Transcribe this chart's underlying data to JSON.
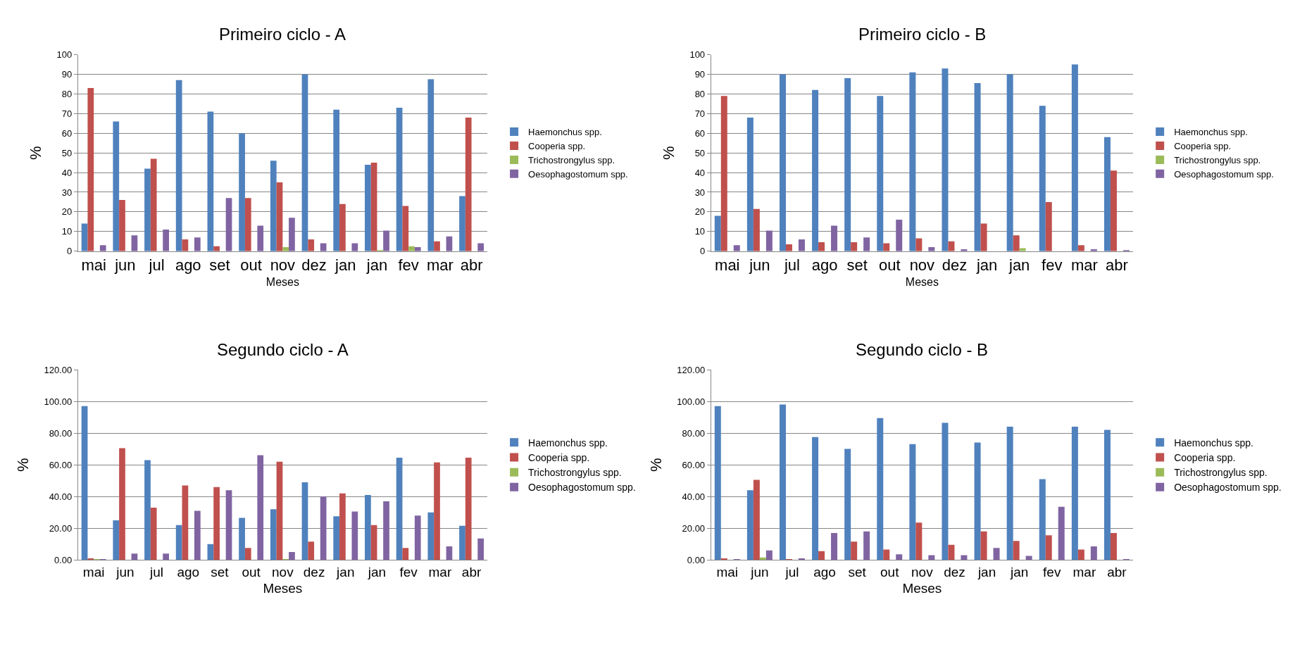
{
  "chart_data": [
    {
      "type": "bar",
      "title": "Primeiro ciclo - A",
      "xlabel": "Meses",
      "ylabel": "%",
      "categories": [
        "mai",
        "jun",
        "jul",
        "ago",
        "set",
        "out",
        "nov",
        "dez",
        "jan",
        "jan",
        "fev",
        "mar",
        "abr"
      ],
      "ylim": [
        0,
        100
      ],
      "yticks": [
        0,
        10,
        20,
        30,
        40,
        50,
        60,
        70,
        80,
        90,
        100
      ],
      "grid": "y",
      "legend": "right",
      "series": [
        {
          "name": "Haemonchus spp.",
          "color": "#4f81bd",
          "values": [
            14,
            66,
            42,
            87,
            71,
            60,
            46,
            90,
            72,
            44,
            73,
            87.5,
            28
          ]
        },
        {
          "name": "Cooperia spp.",
          "color": "#c0504d",
          "values": [
            83,
            26,
            47,
            6,
            2.5,
            27,
            35,
            6,
            24,
            45,
            23,
            5,
            68
          ]
        },
        {
          "name": "Trichostrongylus spp.",
          "color": "#9bbb59",
          "values": [
            0,
            0,
            0,
            0,
            0,
            0,
            2,
            0,
            0,
            0.5,
            2.5,
            0,
            0
          ]
        },
        {
          "name": "Oesophagostomum spp.",
          "color": "#8064a2",
          "values": [
            3,
            8,
            11,
            7,
            27,
            13,
            17,
            4,
            4,
            10.5,
            2,
            7.5,
            4
          ]
        }
      ]
    },
    {
      "type": "bar",
      "title": "Primeiro ciclo - B",
      "xlabel": "Meses",
      "ylabel": "%",
      "categories": [
        "mai",
        "jun",
        "jul",
        "ago",
        "set",
        "out",
        "nov",
        "dez",
        "jan",
        "jan",
        "fev",
        "mar",
        "abr"
      ],
      "ylim": [
        0,
        100
      ],
      "yticks": [
        0,
        10,
        20,
        30,
        40,
        50,
        60,
        70,
        80,
        90,
        100
      ],
      "grid": "y",
      "legend": "right",
      "series": [
        {
          "name": "Haemonchus spp.",
          "color": "#4f81bd",
          "values": [
            18,
            68,
            90,
            82,
            88,
            79,
            91,
            93,
            85.5,
            90,
            74,
            95,
            58
          ]
        },
        {
          "name": "Cooperia spp.",
          "color": "#c0504d",
          "values": [
            79,
            21.5,
            3.5,
            4.5,
            4.5,
            4,
            6.5,
            5,
            14,
            8,
            25,
            3,
            41
          ]
        },
        {
          "name": "Trichostrongylus spp.",
          "color": "#9bbb59",
          "values": [
            0,
            0,
            0,
            0,
            0,
            0,
            0,
            0,
            0,
            1.5,
            0,
            0,
            0
          ]
        },
        {
          "name": "Oesophagostomum spp.",
          "color": "#8064a2",
          "values": [
            3,
            10.5,
            6,
            13,
            7,
            16,
            2,
            1,
            0,
            0,
            0,
            1,
            0.5
          ]
        }
      ]
    },
    {
      "type": "bar",
      "title": "Segundo ciclo - A",
      "xlabel": "Meses",
      "ylabel": "%",
      "categories": [
        "mai",
        "jun",
        "jul",
        "ago",
        "set",
        "out",
        "nov",
        "dez",
        "jan",
        "jan",
        "fev",
        "mar",
        "abr"
      ],
      "ylim": [
        0,
        120
      ],
      "yticks": [
        {
          "value": 0,
          "label": "0.00"
        },
        {
          "value": 20,
          "label": "20.00"
        },
        {
          "value": 40,
          "label": "40.00"
        },
        {
          "value": 60,
          "label": "60.00"
        },
        {
          "value": 80,
          "label": "80.00"
        },
        {
          "value": 100,
          "label": "100.00"
        },
        {
          "value": 120,
          "label": "120.00"
        }
      ],
      "grid": "y",
      "legend": "right",
      "series": [
        {
          "name": "Haemonchus spp.",
          "color": "#4f81bd",
          "values": [
            97,
            25,
            63,
            22,
            10,
            26.5,
            32,
            49,
            27.5,
            41,
            64.5,
            30,
            21.5
          ]
        },
        {
          "name": "Cooperia spp.",
          "color": "#c0504d",
          "values": [
            1,
            70.5,
            33,
            47,
            46,
            7.5,
            62,
            11.5,
            42,
            22,
            7.5,
            61.5,
            64.5
          ]
        },
        {
          "name": "Trichostrongylus spp.",
          "color": "#9bbb59",
          "values": [
            0.5,
            0,
            0,
            0,
            0,
            0,
            0.5,
            0,
            0,
            0,
            0,
            0,
            0
          ]
        },
        {
          "name": "Oesophagostomum spp.",
          "color": "#8064a2",
          "values": [
            0.5,
            4,
            4,
            31,
            44,
            66,
            5,
            40,
            30.5,
            37,
            28,
            8.5,
            13.5
          ]
        }
      ]
    },
    {
      "type": "bar",
      "title": "Segundo ciclo - B",
      "xlabel": "Meses",
      "ylabel": "%",
      "categories": [
        "mai",
        "jun",
        "jul",
        "ago",
        "set",
        "out",
        "nov",
        "dez",
        "jan",
        "jan",
        "fev",
        "mar",
        "abr"
      ],
      "ylim": [
        0,
        120
      ],
      "yticks": [
        {
          "value": 0,
          "label": "0.00"
        },
        {
          "value": 20,
          "label": "20.00"
        },
        {
          "value": 40,
          "label": "40.00"
        },
        {
          "value": 60,
          "label": "60.00"
        },
        {
          "value": 80,
          "label": "80.00"
        },
        {
          "value": 100,
          "label": "100.00"
        },
        {
          "value": 120,
          "label": "120.00"
        }
      ],
      "grid": "y",
      "legend": "right",
      "series": [
        {
          "name": "Haemonchus spp.",
          "color": "#4f81bd",
          "values": [
            97,
            44,
            98,
            77.5,
            70,
            89.5,
            73,
            86.5,
            74,
            84,
            51,
            84,
            82
          ]
        },
        {
          "name": "Cooperia spp.",
          "color": "#c0504d",
          "values": [
            1,
            50.5,
            0.5,
            5.5,
            11.5,
            6.5,
            23.5,
            9.5,
            18,
            12,
            15.5,
            6.5,
            17
          ]
        },
        {
          "name": "Trichostrongylus spp.",
          "color": "#9bbb59",
          "values": [
            0,
            1.5,
            0,
            0,
            0,
            0,
            0,
            0,
            0,
            0,
            0,
            0,
            0
          ]
        },
        {
          "name": "Oesophagostomum spp.",
          "color": "#8064a2",
          "values": [
            0.5,
            6,
            1,
            17,
            18,
            3.5,
            3,
            3,
            7.5,
            2.5,
            33.5,
            8.5,
            0.5
          ]
        }
      ]
    }
  ]
}
